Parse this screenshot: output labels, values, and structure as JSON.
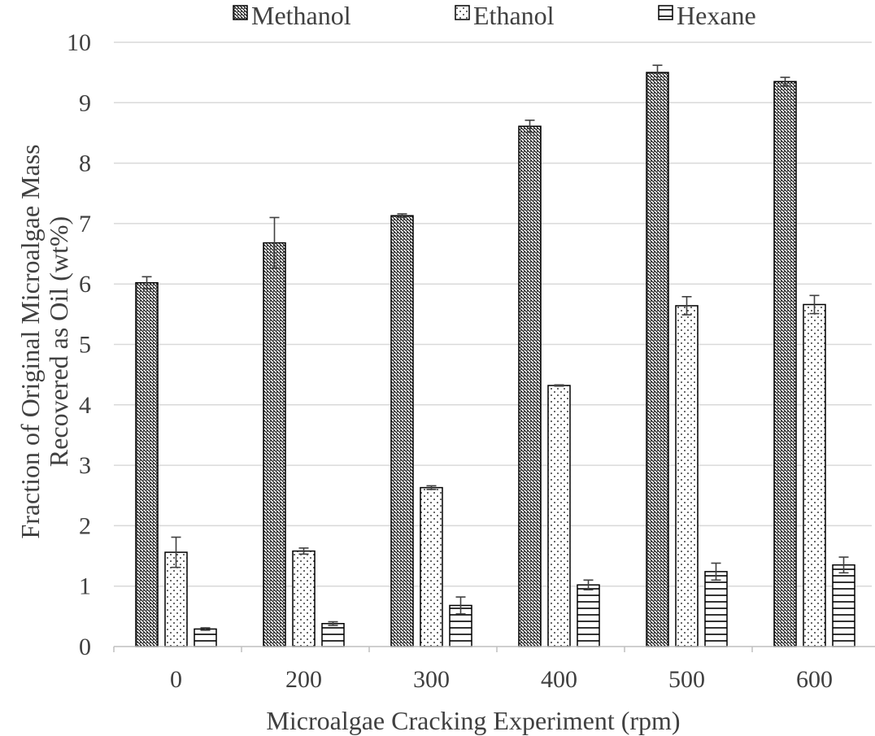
{
  "chart_data": {
    "type": "bar",
    "title": "",
    "xlabel": "Microalgae Cracking Experiment (rpm)",
    "ylabel": "Fraction of Original Microalgae Mass Recovered as Oil (wt%)",
    "ylabel_lines": [
      "Fraction of Original Microalgae Mass",
      "Recovered as Oil (wt%)"
    ],
    "categories": [
      "0",
      "200",
      "300",
      "400",
      "500",
      "600"
    ],
    "ylim": [
      0,
      10
    ],
    "yticks": [
      "0",
      "1",
      "2",
      "3",
      "4",
      "5",
      "6",
      "7",
      "8",
      "9",
      "10"
    ],
    "grid": "horizontal",
    "legend_position": "top",
    "series": [
      {
        "name": "Methanol",
        "pattern": "diagonal-hatch",
        "values": [
          6.02,
          6.68,
          7.13,
          8.61,
          9.5,
          9.35
        ],
        "errors": [
          0.1,
          0.42,
          0.03,
          0.1,
          0.12,
          0.07
        ]
      },
      {
        "name": "Ethanol",
        "pattern": "dots",
        "values": [
          1.56,
          1.58,
          2.63,
          4.32,
          5.64,
          5.66
        ],
        "errors": [
          0.25,
          0.05,
          0.03,
          0.01,
          0.15,
          0.15
        ]
      },
      {
        "name": "Hexane",
        "pattern": "horizontal-lines",
        "values": [
          0.29,
          0.38,
          0.68,
          1.02,
          1.24,
          1.35
        ],
        "errors": [
          0.02,
          0.03,
          0.14,
          0.08,
          0.14,
          0.13
        ]
      }
    ],
    "colors": {
      "bar_stroke": "#000000",
      "gridline": "#d9d9d9",
      "axis": "#bfbfbf",
      "text": "#404040",
      "error_bar": "#404040"
    }
  }
}
